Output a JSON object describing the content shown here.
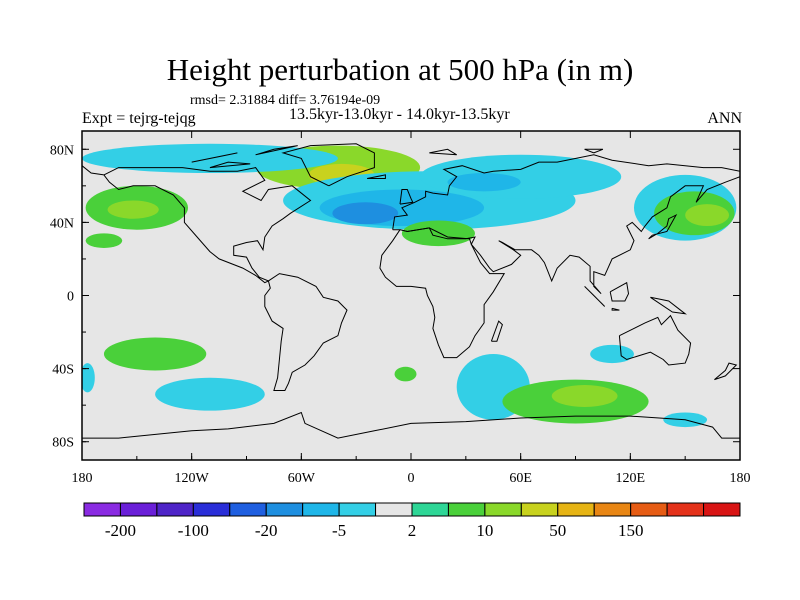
{
  "chart_data": {
    "type": "contour-map",
    "title": "Height perturbation at 500 hPa (in m)",
    "stats_line": "rmsd= 2.31884 diff= 3.76194e-09",
    "period": "13.5kyr-13.0kyr - 14.0kyr-13.5kyr",
    "expt_label": "Expt = tejrg-tejqg",
    "season": "ANN",
    "x_ticks": [
      "180",
      "120W",
      "60W",
      "0",
      "60E",
      "120E",
      "180"
    ],
    "x_tick_lons": [
      -180,
      -120,
      -60,
      0,
      60,
      120,
      180
    ],
    "y_ticks": [
      "80N",
      "40N",
      "0",
      "40S",
      "80S"
    ],
    "y_tick_lats": [
      80,
      40,
      0,
      -40,
      -80
    ],
    "xlim": [
      -180,
      180
    ],
    "ylim": [
      -90,
      90
    ],
    "colorbar": {
      "labels": [
        "-200",
        "-100",
        "-20",
        "-5",
        "2",
        "10",
        "50",
        "150"
      ],
      "label_positions": [
        1,
        3,
        5,
        7,
        9,
        11,
        13,
        15
      ],
      "colors": [
        "#8a2be2",
        "#6a1fd8",
        "#4e24c8",
        "#2a2ed8",
        "#1f5fe0",
        "#1e8fe0",
        "#1fb6e8",
        "#33cfe6",
        "#e6e6e6",
        "#2ed696",
        "#4ad03a",
        "#8ad82a",
        "#c8d21e",
        "#e6b414",
        "#e88614",
        "#e65c14",
        "#e4321a",
        "#d81414"
      ]
    },
    "regions": [
      {
        "name": "n-atlantic-greenland-positive",
        "lon": -40,
        "lat": 70,
        "rlon": 45,
        "rlat": 12,
        "level": 11
      },
      {
        "name": "greenland-core-positive",
        "lon": -38,
        "lat": 66,
        "rlon": 18,
        "rlat": 6,
        "level": 12
      },
      {
        "name": "arctic-canada-negative",
        "lon": -110,
        "lat": 75,
        "rlon": 70,
        "rlat": 8,
        "level": 7
      },
      {
        "name": "n-pacific-east-positive",
        "lon": -150,
        "lat": 48,
        "rlon": 28,
        "rlat": 12,
        "level": 10
      },
      {
        "name": "n-pacific-east-core",
        "lon": -152,
        "lat": 47,
        "rlon": 14,
        "rlat": 5,
        "level": 11
      },
      {
        "name": "n-atlantic-negative",
        "lon": 10,
        "lat": 52,
        "rlon": 80,
        "rlat": 16,
        "level": 7
      },
      {
        "name": "n-atlantic-negative-inner",
        "lon": -5,
        "lat": 48,
        "rlon": 45,
        "rlat": 10,
        "level": 6
      },
      {
        "name": "n-atlantic-negative-core",
        "lon": -25,
        "lat": 45,
        "rlon": 18,
        "rlat": 6,
        "level": 5
      },
      {
        "name": "eurasia-negative",
        "lon": 60,
        "lat": 65,
        "rlon": 55,
        "rlat": 12,
        "level": 7
      },
      {
        "name": "eurasia-negative-core",
        "lon": 40,
        "lat": 62,
        "rlon": 20,
        "rlat": 5,
        "level": 6
      },
      {
        "name": "mediterranean-positive",
        "lon": 15,
        "lat": 34,
        "rlon": 20,
        "rlat": 7,
        "level": 10
      },
      {
        "name": "n-pacific-west-negative",
        "lon": 150,
        "lat": 48,
        "rlon": 28,
        "rlat": 18,
        "level": 7
      },
      {
        "name": "n-pacific-west-positive",
        "lon": 155,
        "lat": 45,
        "rlon": 22,
        "rlat": 12,
        "level": 10
      },
      {
        "name": "n-pacific-west-core",
        "lon": 162,
        "lat": 44,
        "rlon": 12,
        "rlat": 6,
        "level": 11
      },
      {
        "name": "ne-pacific-small-positive",
        "lon": -168,
        "lat": 30,
        "rlon": 10,
        "rlat": 4,
        "level": 10
      },
      {
        "name": "s-pacific-positive",
        "lon": -140,
        "lat": -32,
        "rlon": 28,
        "rlat": 9,
        "level": 10
      },
      {
        "name": "s-pacific-negative",
        "lon": -110,
        "lat": -54,
        "rlon": 30,
        "rlat": 9,
        "level": 7
      },
      {
        "name": "s-atlantic-small-positive",
        "lon": -3,
        "lat": -43,
        "rlon": 6,
        "rlat": 4,
        "level": 10
      },
      {
        "name": "s-indian-negative",
        "lon": 45,
        "lat": -50,
        "rlon": 20,
        "rlat": 18,
        "level": 7
      },
      {
        "name": "s-indian-positive",
        "lon": 90,
        "lat": -58,
        "rlon": 40,
        "rlat": 12,
        "level": 10
      },
      {
        "name": "s-indian-core",
        "lon": 95,
        "lat": -55,
        "rlon": 18,
        "rlat": 6,
        "level": 11
      },
      {
        "name": "australia-negative",
        "lon": 110,
        "lat": -32,
        "rlon": 12,
        "rlat": 5,
        "level": 7
      },
      {
        "name": "s-pacific-east-negative",
        "lon": 150,
        "lat": -68,
        "rlon": 12,
        "rlat": 4,
        "level": 7
      },
      {
        "name": "w-hemisphere-negative-edge",
        "lon": -177,
        "lat": -45,
        "rlon": 4,
        "rlat": 8,
        "level": 7
      }
    ],
    "coastlines": [
      [
        [
          -168,
          66
        ],
        [
          -160,
          70
        ],
        [
          -140,
          70
        ],
        [
          -125,
          70
        ],
        [
          -110,
          68
        ],
        [
          -95,
          68
        ],
        [
          -85,
          70
        ],
        [
          -80,
          63
        ],
        [
          -92,
          57
        ],
        [
          -82,
          52
        ],
        [
          -78,
          58
        ],
        [
          -65,
          60
        ],
        [
          -55,
          52
        ],
        [
          -66,
          45
        ],
        [
          -70,
          42
        ],
        [
          -76,
          38
        ],
        [
          -80,
          32
        ],
        [
          -81,
          25
        ],
        [
          -84,
          30
        ],
        [
          -90,
          29
        ],
        [
          -97,
          27
        ],
        [
          -97,
          22
        ],
        [
          -90,
          21
        ],
        [
          -87,
          15
        ],
        [
          -83,
          10
        ],
        [
          -78,
          8
        ],
        [
          -80,
          7
        ],
        [
          -85,
          11
        ],
        [
          -92,
          15
        ],
        [
          -105,
          20
        ],
        [
          -110,
          24
        ],
        [
          -117,
          32
        ],
        [
          -124,
          40
        ],
        [
          -124,
          48
        ],
        [
          -130,
          55
        ],
        [
          -140,
          60
        ],
        [
          -152,
          60
        ],
        [
          -160,
          58
        ],
        [
          -165,
          62
        ],
        [
          -168,
          66
        ]
      ],
      [
        [
          -78,
          8
        ],
        [
          -72,
          12
        ],
        [
          -62,
          10
        ],
        [
          -52,
          5
        ],
        [
          -48,
          -1
        ],
        [
          -40,
          -3
        ],
        [
          -35,
          -8
        ],
        [
          -38,
          -15
        ],
        [
          -40,
          -22
        ],
        [
          -48,
          -26
        ],
        [
          -53,
          -33
        ],
        [
          -58,
          -38
        ],
        [
          -65,
          -42
        ],
        [
          -67,
          -48
        ],
        [
          -69,
          -52
        ],
        [
          -75,
          -52
        ],
        [
          -73,
          -45
        ],
        [
          -72,
          -35
        ],
        [
          -71,
          -25
        ],
        [
          -70,
          -18
        ],
        [
          -76,
          -14
        ],
        [
          -80,
          -6
        ],
        [
          -80,
          0
        ],
        [
          -77,
          4
        ],
        [
          -78,
          8
        ]
      ],
      [
        [
          -45,
          60
        ],
        [
          -55,
          65
        ],
        [
          -60,
          75
        ],
        [
          -70,
          78
        ],
        [
          -55,
          82
        ],
        [
          -30,
          83
        ],
        [
          -20,
          78
        ],
        [
          -20,
          70
        ],
        [
          -35,
          65
        ],
        [
          -45,
          60
        ]
      ],
      [
        [
          -10,
          36
        ],
        [
          -9,
          43
        ],
        [
          -2,
          44
        ],
        [
          -5,
          48
        ],
        [
          2,
          51
        ],
        [
          8,
          54
        ],
        [
          8,
          57
        ],
        [
          12,
          56
        ],
        [
          20,
          55
        ],
        [
          21,
          60
        ],
        [
          25,
          65
        ],
        [
          18,
          69
        ],
        [
          28,
          71
        ],
        [
          40,
          67
        ],
        [
          45,
          68
        ],
        [
          60,
          69
        ],
        [
          70,
          73
        ],
        [
          80,
          73
        ],
        [
          100,
          77
        ],
        [
          110,
          74
        ],
        [
          130,
          71
        ],
        [
          140,
          72
        ],
        [
          160,
          70
        ],
        [
          170,
          70
        ],
        [
          180,
          68
        ],
        [
          180,
          65
        ],
        [
          172,
          62
        ],
        [
          162,
          58
        ],
        [
          156,
          51
        ],
        [
          160,
          60
        ],
        [
          150,
          60
        ],
        [
          142,
          54
        ],
        [
          140,
          48
        ],
        [
          132,
          43
        ],
        [
          128,
          38
        ],
        [
          126,
          35
        ],
        [
          121,
          40
        ],
        [
          118,
          38
        ],
        [
          122,
          30
        ],
        [
          120,
          25
        ],
        [
          110,
          20
        ],
        [
          106,
          11
        ],
        [
          100,
          13
        ],
        [
          100,
          5
        ],
        [
          104,
          1
        ],
        [
          98,
          8
        ],
        [
          98,
          16
        ],
        [
          92,
          21
        ],
        [
          87,
          22
        ],
        [
          80,
          15
        ],
        [
          77,
          8
        ],
        [
          73,
          18
        ],
        [
          70,
          22
        ],
        [
          66,
          25
        ],
        [
          57,
          25
        ],
        [
          50,
          29
        ],
        [
          48,
          30
        ],
        [
          56,
          25
        ],
        [
          60,
          22
        ],
        [
          55,
          17
        ],
        [
          45,
          13
        ],
        [
          43,
          15
        ],
        [
          38,
          22
        ],
        [
          33,
          28
        ],
        [
          35,
          32
        ],
        [
          30,
          31
        ],
        [
          20,
          31
        ],
        [
          12,
          33
        ],
        [
          10,
          37
        ],
        [
          -2,
          35
        ],
        [
          -6,
          36
        ],
        [
          -10,
          36
        ]
      ],
      [
        [
          -6,
          36
        ],
        [
          -10,
          30
        ],
        [
          -16,
          22
        ],
        [
          -17,
          15
        ],
        [
          -14,
          10
        ],
        [
          -8,
          5
        ],
        [
          0,
          5
        ],
        [
          8,
          4
        ],
        [
          9,
          0
        ],
        [
          12,
          -6
        ],
        [
          13,
          -12
        ],
        [
          12,
          -18
        ],
        [
          15,
          -27
        ],
        [
          18,
          -34
        ],
        [
          25,
          -34
        ],
        [
          32,
          -28
        ],
        [
          35,
          -22
        ],
        [
          40,
          -15
        ],
        [
          40,
          -5
        ],
        [
          45,
          2
        ],
        [
          51,
          12
        ],
        [
          43,
          12
        ],
        [
          38,
          18
        ],
        [
          33,
          28
        ],
        [
          32,
          31
        ],
        [
          20,
          32
        ],
        [
          10,
          37
        ],
        [
          -2,
          35
        ],
        [
          -6,
          36
        ]
      ],
      [
        [
          114,
          -22
        ],
        [
          122,
          -18
        ],
        [
          128,
          -15
        ],
        [
          135,
          -12
        ],
        [
          137,
          -16
        ],
        [
          142,
          -11
        ],
        [
          146,
          -19
        ],
        [
          153,
          -26
        ],
        [
          152,
          -32
        ],
        [
          150,
          -37
        ],
        [
          141,
          -38
        ],
        [
          138,
          -35
        ],
        [
          131,
          -31
        ],
        [
          118,
          -35
        ],
        [
          115,
          -33
        ],
        [
          114,
          -22
        ]
      ],
      [
        [
          -180,
          -78
        ],
        [
          -160,
          -78
        ],
        [
          -150,
          -77
        ],
        [
          -120,
          -74
        ],
        [
          -100,
          -73
        ],
        [
          -75,
          -70
        ],
        [
          -60,
          -64
        ],
        [
          -58,
          -70
        ],
        [
          -40,
          -78
        ],
        [
          -20,
          -74
        ],
        [
          0,
          -70
        ],
        [
          30,
          -69
        ],
        [
          60,
          -67
        ],
        [
          90,
          -66
        ],
        [
          120,
          -66
        ],
        [
          150,
          -68
        ],
        [
          165,
          -72
        ],
        [
          170,
          -78
        ],
        [
          180,
          -78
        ]
      ],
      [
        [
          -6,
          50
        ],
        [
          -5,
          58
        ],
        [
          -2,
          58
        ],
        [
          0,
          53
        ],
        [
          1,
          51
        ],
        [
          -6,
          50
        ]
      ],
      [
        [
          130,
          31
        ],
        [
          135,
          34
        ],
        [
          140,
          38
        ],
        [
          141,
          42
        ],
        [
          145,
          44
        ],
        [
          140,
          35
        ],
        [
          132,
          33
        ],
        [
          130,
          31
        ]
      ],
      [
        [
          44,
          -25
        ],
        [
          48,
          -14
        ],
        [
          50,
          -16
        ],
        [
          47,
          -25
        ],
        [
          44,
          -25
        ]
      ],
      [
        [
          95,
          5
        ],
        [
          105,
          -5
        ],
        [
          106,
          -6
        ],
        [
          100,
          0
        ],
        [
          95,
          5
        ]
      ],
      [
        [
          110,
          -7
        ],
        [
          114,
          -8
        ],
        [
          110,
          -8
        ],
        [
          110,
          -7
        ]
      ],
      [
        [
          109,
          2
        ],
        [
          118,
          7
        ],
        [
          119,
          1
        ],
        [
          117,
          -3
        ],
        [
          110,
          -3
        ],
        [
          109,
          2
        ]
      ],
      [
        [
          131,
          -1
        ],
        [
          141,
          -3
        ],
        [
          150,
          -10
        ],
        [
          143,
          -9
        ],
        [
          131,
          -1
        ]
      ],
      [
        [
          166,
          -46
        ],
        [
          172,
          -41
        ],
        [
          174,
          -37
        ],
        [
          178,
          -38
        ],
        [
          172,
          -44
        ],
        [
          166,
          -46
        ]
      ],
      [
        [
          -24,
          64
        ],
        [
          -14,
          66
        ],
        [
          -14,
          64
        ],
        [
          -24,
          64
        ]
      ],
      [
        [
          -180,
          71
        ],
        [
          -175,
          67
        ],
        [
          -168,
          66
        ]
      ],
      [
        [
          -110,
          70
        ],
        [
          -100,
          73
        ],
        [
          -88,
          72
        ],
        [
          -110,
          70
        ]
      ],
      [
        [
          -120,
          73
        ],
        [
          -105,
          76
        ],
        [
          -95,
          78
        ],
        [
          -120,
          73
        ]
      ],
      [
        [
          -85,
          77
        ],
        [
          -75,
          80
        ],
        [
          -62,
          82
        ],
        [
          -85,
          77
        ]
      ],
      [
        [
          100,
          78
        ],
        [
          105,
          80
        ],
        [
          95,
          80
        ],
        [
          100,
          78
        ]
      ],
      [
        [
          10,
          78
        ],
        [
          20,
          80
        ],
        [
          25,
          77
        ],
        [
          10,
          78
        ]
      ]
    ]
  }
}
